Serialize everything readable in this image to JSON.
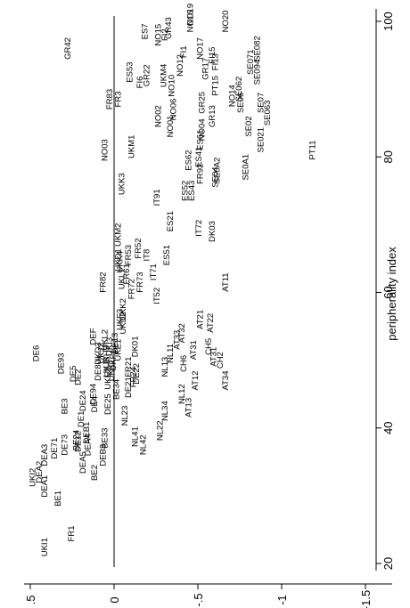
{
  "chart_data": {
    "type": "scatter",
    "orientation": "rotated-90-ccw",
    "xlabel": "peripherality index",
    "ylabel": "",
    "xlim": [
      17,
      102
    ],
    "ylim": [
      -1.55,
      0.55
    ],
    "x_ticks": [
      20,
      40,
      60,
      80,
      100
    ],
    "y_ticks": [
      0.5,
      0,
      -0.5,
      -1,
      -1.5
    ],
    "y_tick_labels": [
      ".5",
      "0",
      "-.5",
      "-1",
      "-1.5"
    ],
    "reference_line": {
      "y": 0
    },
    "grid": false,
    "points": [
      {
        "label": "UKI1",
        "x": 22.4,
        "y": 0.4
      },
      {
        "label": "FR1",
        "x": 24.4,
        "y": 0.24
      },
      {
        "label": "BE1",
        "x": 29.6,
        "y": 0.32
      },
      {
        "label": "DEA1",
        "x": 31.4,
        "y": 0.4
      },
      {
        "label": "UKI2",
        "x": 32.7,
        "y": 0.47
      },
      {
        "label": "DEA2",
        "x": 33.5,
        "y": 0.43
      },
      {
        "label": "BE2",
        "x": 33.4,
        "y": 0.1
      },
      {
        "label": "DEA3",
        "x": 36.0,
        "y": 0.4
      },
      {
        "label": "DE71",
        "x": 37.0,
        "y": 0.34
      },
      {
        "label": "DE73",
        "x": 37.5,
        "y": 0.28
      },
      {
        "label": "BE24",
        "x": 38.2,
        "y": 0.21
      },
      {
        "label": "DE12",
        "x": 38.0,
        "y": 0.2
      },
      {
        "label": "DEB1",
        "x": 39.3,
        "y": 0.15
      },
      {
        "label": "DE1",
        "x": 41.3,
        "y": 0.18
      },
      {
        "label": "BE3",
        "x": 43.2,
        "y": 0.28
      },
      {
        "label": "DEA5",
        "x": 34.9,
        "y": 0.17
      },
      {
        "label": "DEB3",
        "x": 36.0,
        "y": 0.05
      },
      {
        "label": "DEA4",
        "x": 37.5,
        "y": 0.14
      },
      {
        "label": "NL41",
        "x": 38.7,
        "y": -0.14
      },
      {
        "label": "NL42",
        "x": 37.5,
        "y": -0.19
      },
      {
        "label": "NL22",
        "x": 39.6,
        "y": -0.29
      },
      {
        "label": "NL23",
        "x": 41.8,
        "y": -0.08
      },
      {
        "label": "BE33",
        "x": 38.5,
        "y": 0.04
      },
      {
        "label": "DE25",
        "x": 43.5,
        "y": 0.02
      },
      {
        "label": "DE24",
        "x": 44.0,
        "y": 0.17
      },
      {
        "label": "NL34",
        "x": 42.5,
        "y": -0.32
      },
      {
        "label": "NL12",
        "x": 45.0,
        "y": -0.42
      },
      {
        "label": "AT13",
        "x": 43.0,
        "y": -0.46
      },
      {
        "label": "BE34",
        "x": 45.7,
        "y": -0.03
      },
      {
        "label": "DE21",
        "x": 46.0,
        "y": -0.1
      },
      {
        "label": "DE22",
        "x": 48.0,
        "y": -0.15
      },
      {
        "label": "AT12",
        "x": 47.0,
        "y": -0.5
      },
      {
        "label": "DE4",
        "x": 43.5,
        "y": 0.1
      },
      {
        "label": "DE5",
        "x": 48.0,
        "y": 0.23
      },
      {
        "label": "DE93",
        "x": 49.5,
        "y": 0.3
      },
      {
        "label": "DE6",
        "x": 51.0,
        "y": 0.45
      },
      {
        "label": "DE94",
        "x": 45.0,
        "y": 0.11
      },
      {
        "label": "DE2",
        "x": 47.5,
        "y": 0.2
      },
      {
        "label": "UKK1",
        "x": 48.5,
        "y": 0.0
      },
      {
        "label": "UKD3",
        "x": 51.0,
        "y": 0.08
      },
      {
        "label": "DEF",
        "x": 53.5,
        "y": 0.11
      },
      {
        "label": "UKJ2",
        "x": 51.0,
        "y": 0.06
      },
      {
        "label": "UKJ3",
        "x": 49.0,
        "y": 0.03
      },
      {
        "label": "UKH3",
        "x": 50.5,
        "y": 0.03
      },
      {
        "label": "UKI3",
        "x": 52.0,
        "y": 0.01
      },
      {
        "label": "DE13",
        "x": 52.5,
        "y": -0.02
      },
      {
        "label": "UKE1",
        "x": 51.5,
        "y": -0.04
      },
      {
        "label": "UKF1",
        "x": 50.0,
        "y": -0.01
      },
      {
        "label": "UKE3",
        "x": 47.3,
        "y": 0.02
      },
      {
        "label": "UKL2",
        "x": 53.0,
        "y": 0.04
      },
      {
        "label": "DE80",
        "x": 48.5,
        "y": 0.08
      },
      {
        "label": "DK01",
        "x": 52.0,
        "y": -0.14
      },
      {
        "label": "NL13",
        "x": 49.0,
        "y": -0.32
      },
      {
        "label": "NL11",
        "x": 51.0,
        "y": -0.35
      },
      {
        "label": "AT31",
        "x": 51.5,
        "y": -0.49
      },
      {
        "label": "AT33",
        "x": 53.0,
        "y": -0.39
      },
      {
        "label": "AT32",
        "x": 54.0,
        "y": -0.42
      },
      {
        "label": "CH6",
        "x": 49.5,
        "y": -0.43
      },
      {
        "label": "CH5",
        "x": 52.0,
        "y": -0.58
      },
      {
        "label": "CH2",
        "x": 50.0,
        "y": -0.65
      },
      {
        "label": "AT34",
        "x": 47.0,
        "y": -0.68
      },
      {
        "label": "AT31",
        "x": 50.5,
        "y": -0.61
      },
      {
        "label": "FR21",
        "x": 49.0,
        "y": -0.1
      },
      {
        "label": "FR24",
        "x": 47.5,
        "y": -0.13
      },
      {
        "label": "UKD2",
        "x": 55.5,
        "y": -0.07
      },
      {
        "label": "UKK2",
        "x": 57.5,
        "y": -0.07
      },
      {
        "label": "UKF3",
        "x": 56.0,
        "y": -0.05
      },
      {
        "label": "FR82",
        "x": 61.5,
        "y": 0.05
      },
      {
        "label": "UKD1",
        "x": 64.8,
        "y": -0.04
      },
      {
        "label": "UKM2",
        "x": 68.5,
        "y": -0.04
      },
      {
        "label": "FR52",
        "x": 66.5,
        "y": -0.16
      },
      {
        "label": "FR53",
        "x": 65.5,
        "y": -0.1
      },
      {
        "label": "FR61",
        "x": 62.7,
        "y": -0.09
      },
      {
        "label": "FR72",
        "x": 60.5,
        "y": -0.12
      },
      {
        "label": "FR73",
        "x": 61.5,
        "y": -0.17
      },
      {
        "label": "UKL1",
        "x": 62.0,
        "y": -0.06
      },
      {
        "label": "UKK4",
        "x": 64.5,
        "y": -0.05
      },
      {
        "label": "ES51",
        "x": 65.5,
        "y": -0.33
      },
      {
        "label": "IT8",
        "x": 65.5,
        "y": -0.21
      },
      {
        "label": "IT71",
        "x": 63.0,
        "y": -0.25
      },
      {
        "label": "IT52",
        "x": 59.5,
        "y": -0.27
      },
      {
        "label": "ES21",
        "x": 70.5,
        "y": -0.35
      },
      {
        "label": "AT21",
        "x": 56.0,
        "y": -0.53
      },
      {
        "label": "AT22",
        "x": 55.5,
        "y": -0.59
      },
      {
        "label": "AT11",
        "x": 61.5,
        "y": -0.68
      },
      {
        "label": "IT91",
        "x": 74.0,
        "y": -0.27
      },
      {
        "label": "IT72",
        "x": 69.5,
        "y": -0.52
      },
      {
        "label": "DK03",
        "x": 69.0,
        "y": -0.6
      },
      {
        "label": "UKK3",
        "x": 76.0,
        "y": -0.06
      },
      {
        "label": "ES52",
        "x": 75.0,
        "y": -0.44
      },
      {
        "label": "ES43",
        "x": 75.0,
        "y": -0.48
      },
      {
        "label": "ES62",
        "x": 79.5,
        "y": -0.46
      },
      {
        "label": "ES41",
        "x": 80.0,
        "y": -0.52
      },
      {
        "label": "ES61",
        "x": 82.5,
        "y": -0.53
      },
      {
        "label": "FR92",
        "x": 77.5,
        "y": -0.53
      },
      {
        "label": "SE04",
        "x": 77.0,
        "y": -0.62
      },
      {
        "label": "SE0A2",
        "x": 78.0,
        "y": -0.63
      },
      {
        "label": "UKM1",
        "x": 81.5,
        "y": -0.12
      },
      {
        "label": "NO03",
        "x": 81.0,
        "y": 0.04
      },
      {
        "label": "NO02",
        "x": 86.0,
        "y": -0.28
      },
      {
        "label": "NO01",
        "x": 84.5,
        "y": -0.35
      },
      {
        "label": "NO06",
        "x": 87.0,
        "y": -0.37
      },
      {
        "label": "NO04",
        "x": 84.0,
        "y": -0.54
      },
      {
        "label": "SE0A1",
        "x": 78.5,
        "y": -0.8
      },
      {
        "label": "SE06",
        "x": 88.0,
        "y": -0.77
      },
      {
        "label": "SE02",
        "x": 84.5,
        "y": -0.82
      },
      {
        "label": "SE07",
        "x": 88.0,
        "y": -0.89
      },
      {
        "label": "SE063",
        "x": 86.5,
        "y": -0.93
      },
      {
        "label": "SE021",
        "x": 82.5,
        "y": -0.89
      },
      {
        "label": "FR83",
        "x": 88.5,
        "y": 0.01
      },
      {
        "label": "FR3",
        "x": 88.5,
        "y": -0.04
      },
      {
        "label": "ES53",
        "x": 92.5,
        "y": -0.11
      },
      {
        "label": "FI6",
        "x": 91.0,
        "y": -0.17
      },
      {
        "label": "GR22",
        "x": 92.0,
        "y": -0.21
      },
      {
        "label": "UKM4",
        "x": 92.0,
        "y": -0.31
      },
      {
        "label": "NO10",
        "x": 90.5,
        "y": -0.36
      },
      {
        "label": "NO12",
        "x": 93.5,
        "y": -0.41
      },
      {
        "label": "PT15",
        "x": 90.5,
        "y": -0.62
      },
      {
        "label": "GR13",
        "x": 86.0,
        "y": -0.6
      },
      {
        "label": "GR25",
        "x": 88.0,
        "y": -0.54
      },
      {
        "label": "GR17",
        "x": 93.0,
        "y": -0.56
      },
      {
        "label": "NO14",
        "x": 89.0,
        "y": -0.72
      },
      {
        "label": "SE071",
        "x": 94.0,
        "y": -0.83
      },
      {
        "label": "SE062",
        "x": 90.0,
        "y": -0.76
      },
      {
        "label": "SE082",
        "x": 96.0,
        "y": -0.87
      },
      {
        "label": "SE094",
        "x": 92.5,
        "y": -0.87
      },
      {
        "label": "GR42",
        "x": 96.0,
        "y": 0.26
      },
      {
        "label": "ES7",
        "x": 98.5,
        "y": -0.2
      },
      {
        "label": "NO15",
        "x": 98.0,
        "y": -0.28
      },
      {
        "label": "FI2",
        "x": 98.0,
        "y": -0.32
      },
      {
        "label": "GR43",
        "x": 99.0,
        "y": -0.34
      },
      {
        "label": "FI1",
        "x": 95.5,
        "y": -0.43
      },
      {
        "label": "FI15",
        "x": 95.0,
        "y": -0.6
      },
      {
        "label": "FI13",
        "x": 94.0,
        "y": -0.62
      },
      {
        "label": "NO17",
        "x": 96.0,
        "y": -0.53
      },
      {
        "label": "NO16",
        "x": 100.0,
        "y": -0.47
      },
      {
        "label": "NO19",
        "x": 101.0,
        "y": -0.47
      },
      {
        "label": "NO20",
        "x": 100.0,
        "y": -0.68
      },
      {
        "label": "PT11",
        "x": 81.0,
        "y": -1.2
      }
    ]
  }
}
